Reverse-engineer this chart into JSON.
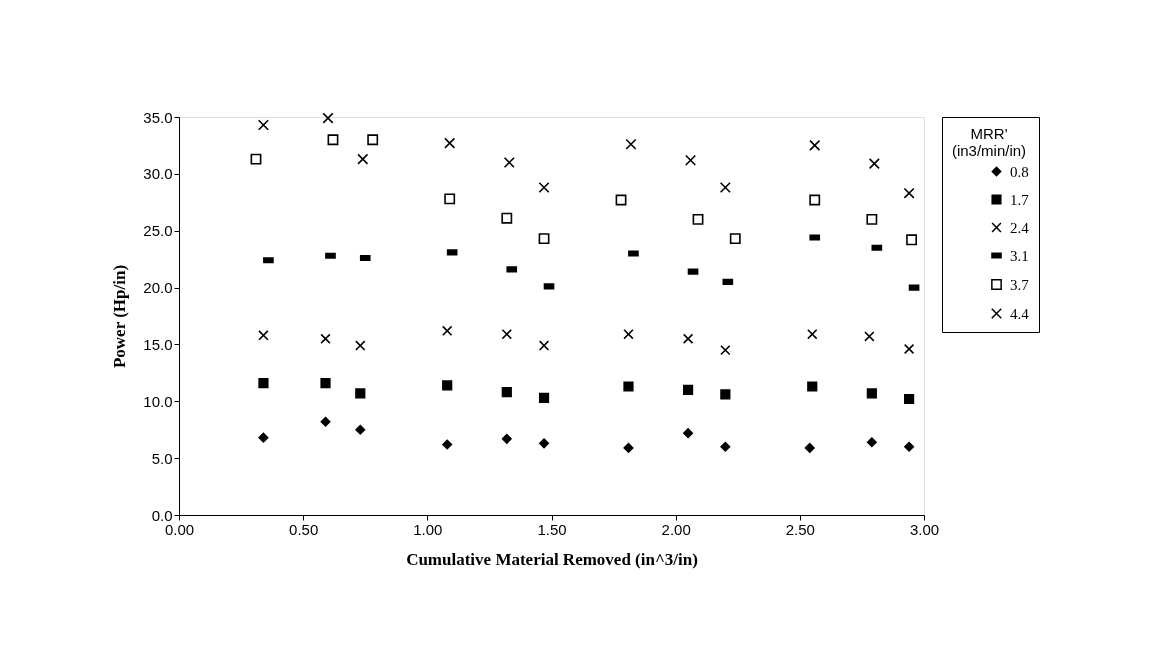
{
  "chart_data": {
    "type": "scatter",
    "xlabel": "Cumulative Material Removed (in^3/in)",
    "ylabel": "Power (Hp/in)",
    "legend_title": "MRR'\n(in3/min/in)",
    "legend": "right",
    "grid": false,
    "xlim": [
      0,
      3
    ],
    "xticks": [
      {
        "value": 0,
        "label": "0.00"
      },
      {
        "value": 0.5,
        "label": "0.50"
      },
      {
        "value": 1,
        "label": "1.00"
      },
      {
        "value": 1.5,
        "label": "1.50"
      },
      {
        "value": 2,
        "label": "2.00"
      },
      {
        "value": 2.5,
        "label": "2.50"
      },
      {
        "value": 3,
        "label": "3.00"
      }
    ],
    "ylim": [
      0,
      35
    ],
    "yticks": [
      {
        "value": 0,
        "label": "0.0"
      },
      {
        "value": 5,
        "label": "5.0"
      },
      {
        "value": 10,
        "label": "10.0"
      },
      {
        "value": 15,
        "label": "15.0"
      },
      {
        "value": 20,
        "label": "20.0"
      },
      {
        "value": 25,
        "label": "25.0"
      },
      {
        "value": 30,
        "label": "30.0"
      },
      {
        "value": 35,
        "label": "35.0"
      }
    ],
    "series": [
      {
        "name": "0.8",
        "color": "#000000",
        "marker": "diamond",
        "x": [
          0.34,
          0.59,
          0.73,
          1.08,
          1.32,
          1.47,
          1.81,
          2.05,
          2.2,
          2.54,
          2.79,
          2.94
        ],
        "values": [
          6.8,
          8.2,
          7.5,
          6.2,
          6.7,
          6.3,
          5.9,
          7.2,
          6.0,
          5.9,
          6.4,
          6.0
        ]
      },
      {
        "name": "1.7",
        "color": "#000000",
        "marker": "square",
        "x": [
          0.34,
          0.59,
          0.73,
          1.08,
          1.32,
          1.47,
          1.81,
          2.05,
          2.2,
          2.55,
          2.79,
          2.94
        ],
        "values": [
          11.6,
          11.6,
          10.7,
          11.4,
          10.8,
          10.3,
          11.3,
          11.0,
          10.6,
          11.3,
          10.7,
          10.2
        ]
      },
      {
        "name": "2.4",
        "color": "#000000",
        "marker": "cross",
        "x": [
          0.34,
          0.59,
          0.73,
          1.08,
          1.32,
          1.47,
          1.81,
          2.05,
          2.2,
          2.55,
          2.78,
          2.94
        ],
        "values": [
          15.8,
          15.5,
          14.9,
          16.2,
          15.9,
          14.9,
          15.9,
          15.5,
          14.5,
          15.9,
          15.7,
          14.6
        ]
      },
      {
        "name": "3.1",
        "color": "#000000",
        "marker": "square",
        "x": [
          0.36,
          0.61,
          0.75,
          1.1,
          1.34,
          1.49,
          1.83,
          2.07,
          2.21,
          2.56,
          2.81,
          2.96
        ],
        "values": [
          22.4,
          22.8,
          22.6,
          23.1,
          21.6,
          20.1,
          23.0,
          21.4,
          20.5,
          24.4,
          23.5,
          20.0
        ]
      },
      {
        "name": "3.7",
        "color": "#000000",
        "marker": "square",
        "x": [
          0.31,
          0.62,
          0.78,
          1.09,
          1.32,
          1.47,
          1.78,
          2.09,
          2.24,
          2.56,
          2.79,
          2.95
        ],
        "values": [
          31.3,
          33.0,
          33.0,
          27.8,
          26.1,
          24.3,
          27.7,
          26.0,
          24.3,
          27.7,
          26.0,
          24.2
        ]
      },
      {
        "name": "4.4",
        "color": "#000000",
        "marker": "cross",
        "x": [
          0.34,
          0.6,
          0.74,
          1.09,
          1.33,
          1.47,
          1.82,
          2.06,
          2.2,
          2.56,
          2.8,
          2.94
        ],
        "values": [
          34.3,
          34.9,
          31.3,
          32.7,
          31.0,
          28.8,
          32.6,
          31.2,
          28.8,
          32.5,
          30.9,
          28.3
        ]
      }
    ]
  }
}
